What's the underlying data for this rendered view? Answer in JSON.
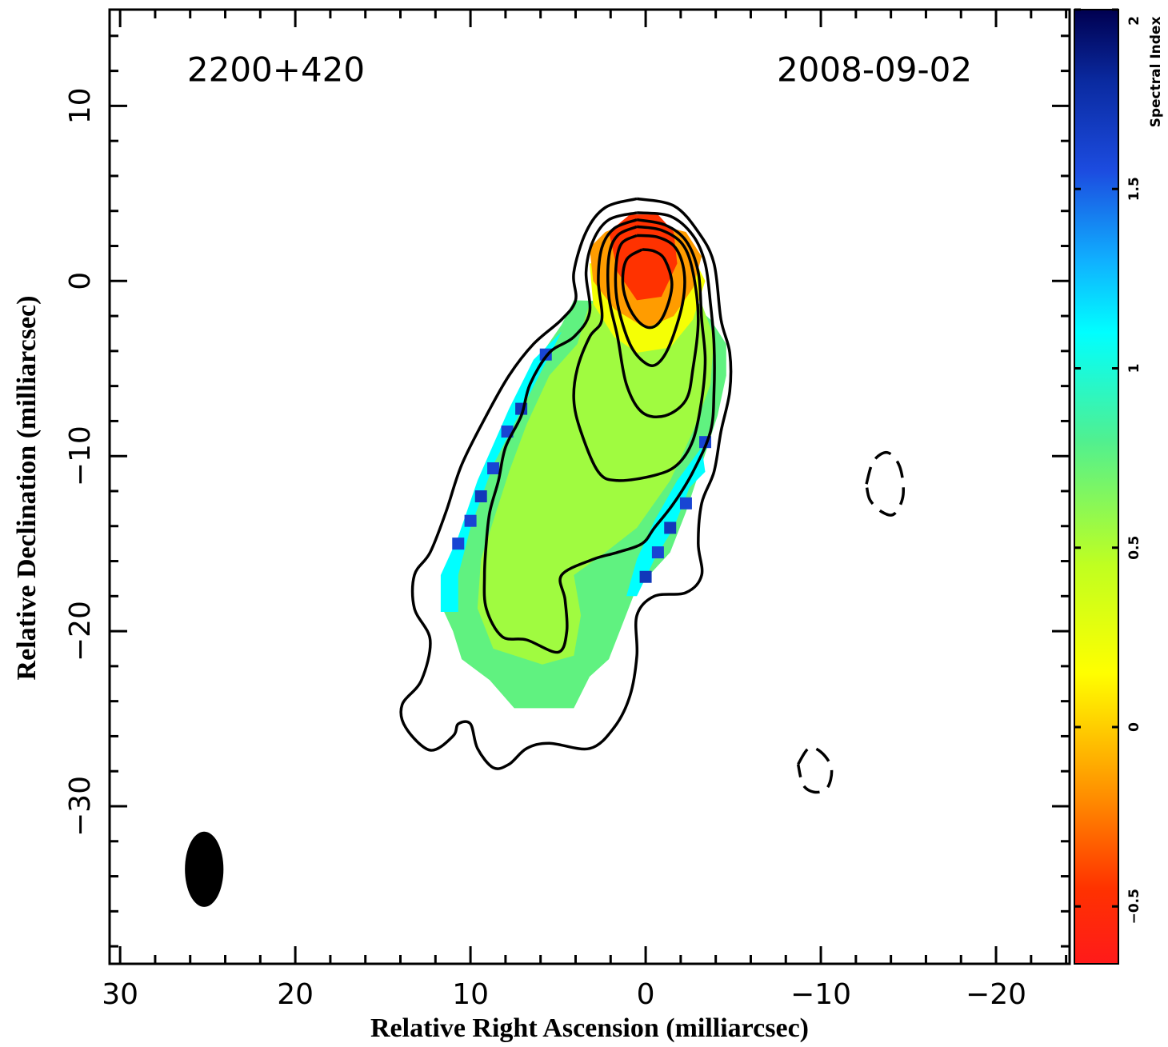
{
  "chart_data": {
    "type": "contour",
    "source": "2200+420",
    "date": "2008-09-02",
    "x_label": "Relative Right Ascension (milliarcsec)",
    "y_label": "Relative Declination (milliarcsec)",
    "xlim": [
      30.6,
      -24.2
    ],
    "ylim": [
      -39,
      15.5
    ],
    "xticks": [
      30,
      20,
      10,
      0,
      {
        "value": -10,
        "label": "−10"
      },
      {
        "value": -20,
        "label": "−20"
      }
    ],
    "yticks": [
      10,
      0,
      {
        "value": -10,
        "label": "−10"
      },
      {
        "value": -20,
        "label": "−20"
      },
      {
        "value": -30,
        "label": "−30"
      }
    ],
    "xminorticks": [
      28,
      26,
      24,
      22,
      18,
      16,
      14,
      12,
      8,
      6,
      4,
      2,
      -2,
      -4,
      -6,
      -8,
      -12,
      -14,
      -16,
      -18,
      -22,
      -24
    ],
    "yminorticks": [
      14,
      12,
      8,
      6,
      4,
      2,
      -2,
      -4,
      -6,
      -8,
      -12,
      -14,
      -16,
      -18,
      -22,
      -24,
      -26,
      -28,
      -32,
      -34,
      -36,
      -38
    ],
    "colorbar": {
      "label": "Spectral Index",
      "lim": [
        -0.66,
        2
      ],
      "ticks": [
        2,
        1.5,
        1,
        0.5,
        0,
        {
          "value": -0.5,
          "label": "−0.5"
        }
      ]
    },
    "colormap": [
      {
        "value": -0.66,
        "color": "#ff1a1a"
      },
      {
        "value": -0.45,
        "color": "#ff3200"
      },
      {
        "value": -0.2,
        "color": "#ff8c00"
      },
      {
        "value": 0.15,
        "color": "#ffff00"
      },
      {
        "value": 0.45,
        "color": "#c0ff20"
      },
      {
        "value": 0.8,
        "color": "#50f090"
      },
      {
        "value": 1.1,
        "color": "#00ffff"
      },
      {
        "value": 1.3,
        "color": "#10b0ff"
      },
      {
        "value": 1.55,
        "color": "#1c4ce0"
      },
      {
        "value": 1.8,
        "color": "#0a2aa0"
      },
      {
        "value": 2,
        "color": "#000050"
      }
    ],
    "regions": [
      {
        "value": 0.75,
        "x": [
          4.1,
          4.8,
          5.9,
          6.8,
          7.8,
          8.7,
          9.6,
          10.5,
          11.4,
          11.6,
          11.0,
          10.5,
          8.9,
          7.5,
          4.1,
          3.2,
          2.1,
          1.4,
          0.7,
          -0.2,
          -1.4,
          -2.3,
          -3.2,
          -4.1,
          -4.6,
          -4.6,
          -3.7,
          -2.7
        ],
        "y": [
          -1.1,
          -2.5,
          -4.1,
          -5.9,
          -7.7,
          -10.0,
          -12.3,
          -14.6,
          -16.4,
          -18.7,
          -20.0,
          -21.6,
          -22.8,
          -24.4,
          -24.4,
          -22.6,
          -21.6,
          -19.8,
          -18.0,
          -16.8,
          -15.5,
          -13.2,
          -10.5,
          -7.7,
          -5.4,
          -3.6,
          -2.2,
          -1.3
        ]
      },
      {
        "value": 1.1,
        "x": [
          5.5,
          4.8,
          8.7,
          10.0,
          10.7,
          10.7,
          11.7,
          11.7,
          10.7,
          9.6,
          7.8,
          6.4
        ],
        "y": [
          -3.6,
          -2.9,
          -10.5,
          -14.1,
          -16.8,
          -18.9,
          -18.9,
          -16.8,
          -14.6,
          -11.4,
          -7.3,
          -4.5
        ]
      },
      {
        "value": 1.1,
        "x": [
          -3.2,
          -3.4,
          -2.5,
          -1.6,
          -0.5,
          0.5,
          1.1,
          0.5,
          -0.5,
          -1.8
        ],
        "y": [
          -9.5,
          -10.9,
          -11.8,
          -14.1,
          -15.9,
          -18.0,
          -18.0,
          -15.9,
          -13.7,
          -11.4
        ]
      },
      {
        "value": 0.55,
        "x": [
          3.2,
          3.9,
          5.5,
          6.8,
          7.8,
          8.7,
          9.4,
          9.6,
          8.7,
          5.9,
          4.1,
          3.7,
          4.1,
          2.3,
          0.5,
          -1.4,
          -2.7,
          -3.7,
          -3.9,
          -3.2
        ],
        "y": [
          -1.3,
          -3.6,
          -5.4,
          -8.2,
          -10.9,
          -13.7,
          -15.9,
          -18.7,
          -21.0,
          -21.9,
          -21.4,
          -19.1,
          -16.8,
          -15.5,
          -14.1,
          -11.4,
          -8.6,
          -5.9,
          -3.2,
          -1.3
        ]
      },
      {
        "value": 0.2,
        "x": [
          3.2,
          3.0,
          1.8,
          0.5,
          -1.4,
          -2.7,
          -3.4,
          -2.7
        ],
        "y": [
          1.0,
          -1.3,
          -3.2,
          -4.1,
          -3.8,
          -2.2,
          0.0,
          1.4
        ]
      },
      {
        "value": -0.15,
        "x": [
          3.2,
          3.0,
          1.8,
          0.0,
          -1.6,
          -2.7,
          -3.2,
          -2.3,
          0.5,
          2.3
        ],
        "y": [
          1.9,
          0.0,
          -1.6,
          -2.7,
          -2.0,
          -0.4,
          1.4,
          2.8,
          3.5,
          2.8
        ]
      },
      {
        "value": -0.45,
        "x": [
          2.1,
          1.6,
          0.5,
          -0.9,
          -1.8,
          -1.6,
          -0.7,
          0.9
        ],
        "y": [
          2.8,
          0.5,
          -1.1,
          -0.9,
          1.0,
          2.8,
          3.8,
          3.8
        ]
      }
    ],
    "pixels": {
      "x": [
        5.7,
        7.1,
        7.9,
        8.7,
        9.4,
        10.0,
        10.7,
        -2.3,
        -1.4,
        -0.7,
        0.0,
        -3.4
      ],
      "y": [
        -4.2,
        -7.3,
        -8.6,
        -10.7,
        -12.3,
        -13.7,
        -15.0,
        -12.7,
        -14.1,
        -15.5,
        -16.9,
        -9.2
      ],
      "values": [
        1.6,
        1.7,
        1.6,
        1.6,
        1.7,
        1.6,
        1.6,
        1.6,
        1.7,
        1.6,
        1.7,
        1.6
      ]
    },
    "contours": [
      {
        "style": "solid",
        "x": [
          0.5,
          2.3,
          3.4,
          4.1,
          4.0,
          4.8,
          6.4,
          7.8,
          9.1,
          10.5,
          11.4,
          12.3,
          13.2,
          13.2,
          12.3,
          12.8,
          13.9,
          13.7,
          12.3,
          11.0,
          10.7,
          10.0,
          9.6,
          8.7,
          7.8,
          6.8,
          5.5,
          3.2,
          1.8,
          0.9,
          0.5,
          0.5,
          -0.5,
          -2.3,
          -3.2,
          -3.0,
          -3.2,
          -3.9,
          -4.3,
          -4.8,
          -4.8,
          -4.3,
          -3.9,
          -3.0,
          -1.6,
          0.5
        ],
        "y": [
          4.7,
          4.2,
          2.8,
          0.5,
          -1.1,
          -2.2,
          -3.6,
          -5.4,
          -7.7,
          -10.5,
          -13.2,
          -15.5,
          -16.8,
          -18.7,
          -20.5,
          -22.8,
          -24.2,
          -25.5,
          -26.8,
          -26.0,
          -25.3,
          -25.3,
          -26.7,
          -27.8,
          -27.6,
          -26.7,
          -26.4,
          -26.7,
          -25.5,
          -23.7,
          -21.4,
          -19.1,
          -18.0,
          -17.8,
          -16.8,
          -15.0,
          -12.7,
          -10.9,
          -8.6,
          -6.3,
          -4.1,
          -2.2,
          1.0,
          2.8,
          4.3,
          4.7
        ]
      },
      {
        "style": "solid",
        "x": [
          0.5,
          2.1,
          3.0,
          3.4,
          3.2,
          4.1,
          5.5,
          6.6,
          7.1,
          8.0,
          8.4,
          8.9,
          9.1,
          9.2,
          9.1,
          8.2,
          6.8,
          5.0,
          4.5,
          4.6,
          4.8,
          3.0,
          1.6,
          0.2,
          -0.5,
          -1.6,
          -2.7,
          -3.7,
          -3.9,
          -3.9,
          -3.7,
          -3.4,
          -2.7,
          -1.4,
          0.5
        ],
        "y": [
          3.9,
          3.5,
          2.3,
          0.5,
          -1.8,
          -3.2,
          -4.1,
          -5.9,
          -7.7,
          -9.5,
          -11.4,
          -13.2,
          -15.0,
          -16.8,
          -18.7,
          -20.3,
          -20.5,
          -21.2,
          -20.0,
          -18.2,
          -16.8,
          -15.9,
          -15.5,
          -15.0,
          -14.1,
          -12.7,
          -10.9,
          -8.6,
          -6.3,
          -3.6,
          -1.3,
          1.0,
          2.6,
          3.7,
          3.9
        ]
      },
      {
        "style": "solid",
        "x": [
          0.5,
          1.8,
          2.5,
          2.7,
          2.5,
          3.2,
          3.9,
          4.1,
          3.7,
          2.7,
          1.6,
          -0.5,
          -1.8,
          -2.7,
          -3.2,
          -3.4,
          -3.2,
          -3.0,
          -2.3,
          -1.1,
          0.5
        ],
        "y": [
          3.5,
          3.0,
          1.9,
          0.0,
          -2.2,
          -3.2,
          -5.0,
          -6.8,
          -8.6,
          -10.9,
          -11.4,
          -11.1,
          -10.5,
          -9.1,
          -6.8,
          -4.5,
          -2.2,
          0.5,
          2.3,
          3.2,
          3.5
        ]
      },
      {
        "style": "solid",
        "x": [
          0.5,
          1.6,
          2.1,
          2.1,
          1.6,
          1.1,
          0.2,
          -1.1,
          -2.3,
          -2.7,
          -3.0,
          -2.7,
          -2.1,
          -0.9,
          0.5
        ],
        "y": [
          3.1,
          2.6,
          1.4,
          -0.9,
          -3.2,
          -5.9,
          -7.5,
          -7.7,
          -6.8,
          -5.0,
          -2.2,
          0.5,
          2.1,
          2.9,
          3.1
        ]
      },
      {
        "style": "solid",
        "x": [
          0.5,
          1.4,
          1.7,
          1.6,
          0.9,
          0.0,
          -0.7,
          -1.4,
          -2.1,
          -2.2,
          -1.7,
          -0.7,
          0.5
        ],
        "y": [
          2.6,
          2.1,
          0.7,
          -1.3,
          -3.6,
          -4.7,
          -4.7,
          -3.6,
          -1.3,
          0.5,
          1.9,
          2.5,
          2.6
        ]
      },
      {
        "style": "solid",
        "x": [
          0.2,
          1.1,
          1.3,
          0.9,
          0.2,
          -0.5,
          -1.1,
          -1.5,
          -1.1,
          -0.5,
          0.2
        ],
        "y": [
          1.8,
          1.2,
          -0.2,
          -1.6,
          -2.5,
          -2.6,
          -1.8,
          -0.2,
          1.2,
          1.7,
          1.8
        ]
      },
      {
        "style": "dashed",
        "x": [
          -12.6,
          -13.0,
          -13.8,
          -14.5,
          -14.7,
          -14.2,
          -13.5,
          -12.8,
          -12.6
        ],
        "y": [
          -11.6,
          -10.3,
          -9.8,
          -10.6,
          -12.2,
          -13.3,
          -13.2,
          -12.5,
          -11.6
        ]
      },
      {
        "style": "dashed",
        "x": [
          -8.7,
          -9.3,
          -10.0,
          -10.6,
          -10.4,
          -9.7,
          -9.0,
          -8.7
        ],
        "y": [
          -27.6,
          -26.7,
          -26.9,
          -27.8,
          -28.9,
          -29.2,
          -28.8,
          -27.6
        ]
      }
    ],
    "beam": {
      "x": 25.2,
      "y": -33.6,
      "major": 4.3,
      "minor": 2.2,
      "color": "#000000"
    },
    "contour_color": "#000000"
  }
}
